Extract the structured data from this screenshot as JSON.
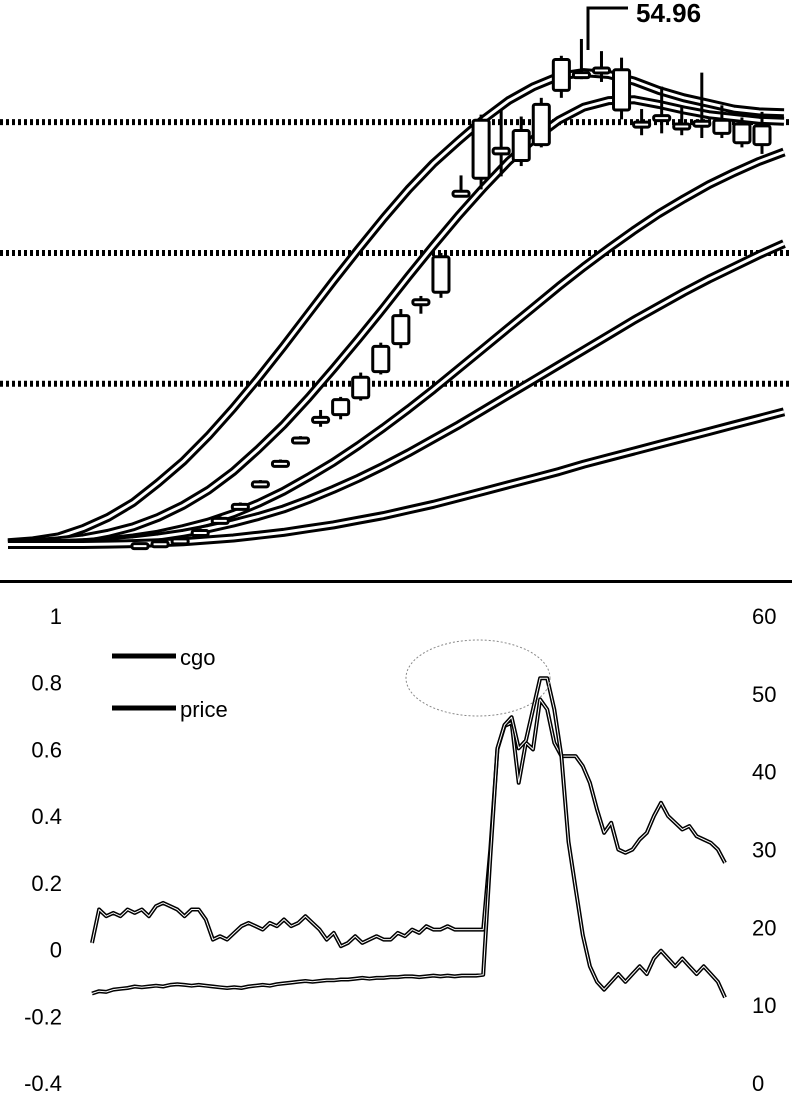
{
  "chart_data": [
    {
      "type": "candlestick",
      "price_tag": "54.96",
      "colors": {
        "line": "#000000",
        "background": "#ffffff"
      },
      "reference_levels": [
        46,
        32,
        18
      ],
      "ylim": [
        0,
        58
      ],
      "candles": [
        {
          "o": 0.9,
          "h": 1.0,
          "l": 0.8,
          "c": 0.9
        },
        {
          "o": 1.1,
          "h": 1.2,
          "l": 1.0,
          "c": 1.1
        },
        {
          "o": 1.4,
          "h": 1.5,
          "l": 1.3,
          "c": 1.4
        },
        {
          "o": 2.3,
          "h": 2.5,
          "l": 2.2,
          "c": 2.3
        },
        {
          "o": 3.6,
          "h": 3.8,
          "l": 3.5,
          "c": 3.6
        },
        {
          "o": 5.1,
          "h": 5.3,
          "l": 4.9,
          "c": 5.1
        },
        {
          "o": 7.5,
          "h": 7.7,
          "l": 7.3,
          "c": 7.5
        },
        {
          "o": 9.7,
          "h": 9.9,
          "l": 9.5,
          "c": 9.7
        },
        {
          "o": 12.2,
          "h": 12.4,
          "l": 12.0,
          "c": 12.2
        },
        {
          "o": 14.2,
          "h": 15.2,
          "l": 13.4,
          "c": 14.4
        },
        {
          "o": 14.7,
          "h": 16.6,
          "l": 14.2,
          "c": 16.3
        },
        {
          "o": 16.5,
          "h": 19.2,
          "l": 16.2,
          "c": 18.7
        },
        {
          "o": 19.3,
          "h": 22.4,
          "l": 19.0,
          "c": 22.0
        },
        {
          "o": 22.3,
          "h": 26.0,
          "l": 21.8,
          "c": 25.3
        },
        {
          "o": 27.0,
          "h": 27.4,
          "l": 25.5,
          "c": 27.0
        },
        {
          "o": 27.8,
          "h": 32.0,
          "l": 27.2,
          "c": 31.6
        },
        {
          "o": 38.6,
          "h": 40.3,
          "l": 38.0,
          "c": 38.6
        },
        {
          "o": 40.0,
          "h": 46.8,
          "l": 38.8,
          "c": 46.2
        },
        {
          "o": 42.6,
          "h": 47.4,
          "l": 40.2,
          "c": 43.2
        },
        {
          "o": 41.9,
          "h": 46.6,
          "l": 41.3,
          "c": 45.1
        },
        {
          "o": 43.6,
          "h": 48.6,
          "l": 43.3,
          "c": 47.9
        },
        {
          "o": 49.4,
          "h": 53.1,
          "l": 48.6,
          "c": 52.7
        },
        {
          "o": 51.3,
          "h": 54.9,
          "l": 50.6,
          "c": 51.3
        },
        {
          "o": 51.3,
          "h": 53.6,
          "l": 50.3,
          "c": 51.8
        },
        {
          "o": 47.3,
          "h": 52.9,
          "l": 46.3,
          "c": 51.6
        },
        {
          "o": 46.0,
          "h": 47.4,
          "l": 44.6,
          "c": 46.0
        },
        {
          "o": 46.7,
          "h": 49.8,
          "l": 44.8,
          "c": 46.7
        },
        {
          "o": 45.8,
          "h": 47.6,
          "l": 44.6,
          "c": 45.8
        },
        {
          "o": 46.1,
          "h": 51.3,
          "l": 44.3,
          "c": 46.1
        },
        {
          "o": 46.2,
          "h": 47.8,
          "l": 44.3,
          "c": 44.8
        },
        {
          "o": 45.8,
          "h": 46.5,
          "l": 43.3,
          "c": 43.8
        },
        {
          "o": 43.6,
          "h": 47.1,
          "l": 42.6,
          "c": 45.6
        }
      ],
      "moving_averages": [
        [
          1.0,
          1.2,
          1.6,
          2.5,
          3.7,
          5.3,
          7.4,
          9.7,
          12.4,
          15.4,
          18.6,
          22.0,
          25.5,
          29.0,
          32.4,
          35.7,
          38.8,
          41.6,
          44.0,
          46.3,
          48.3,
          49.8,
          50.9,
          51.3,
          51.1,
          50.4,
          49.4,
          48.6,
          48.0,
          47.4,
          47.1,
          47.0
        ],
        [
          0.9,
          1.0,
          1.2,
          1.5,
          2.0,
          2.7,
          3.7,
          5.0,
          6.6,
          8.6,
          11.0,
          13.6,
          16.5,
          19.6,
          22.8,
          26.1,
          29.5,
          32.8,
          36.0,
          39.0,
          41.8,
          44.2,
          46.2,
          47.6,
          48.3,
          48.4,
          47.9,
          47.3,
          46.8,
          46.5,
          46.2,
          46.1
        ],
        [
          0.8,
          0.85,
          0.9,
          1.0,
          1.2,
          1.5,
          1.9,
          2.5,
          3.2,
          4.1,
          5.2,
          6.5,
          8.0,
          9.6,
          11.4,
          13.3,
          15.3,
          17.4,
          19.6,
          21.8,
          24.0,
          26.2,
          28.4,
          30.5,
          32.5,
          34.4,
          36.2,
          37.8,
          39.3,
          40.6,
          41.8,
          42.8
        ],
        [
          0.8,
          0.85,
          0.9,
          1.0,
          1.1,
          1.3,
          1.6,
          2.0,
          2.5,
          3.1,
          3.8,
          4.6,
          5.6,
          6.7,
          7.9,
          9.2,
          10.6,
          12.1,
          13.6,
          15.2,
          16.8,
          18.4,
          20.0,
          21.6,
          23.2,
          24.8,
          26.3,
          27.8,
          29.2,
          30.5,
          31.8,
          33.0
        ],
        [
          0.8,
          0.8,
          0.8,
          0.8,
          0.85,
          0.9,
          1.0,
          1.1,
          1.3,
          1.5,
          1.8,
          2.1,
          2.5,
          2.9,
          3.4,
          3.9,
          4.5,
          5.1,
          5.8,
          6.5,
          7.2,
          7.9,
          8.6,
          9.4,
          10.1,
          10.8,
          11.5,
          12.2,
          12.9,
          13.6,
          14.3,
          15.0
        ]
      ]
    },
    {
      "type": "line",
      "left_axis": {
        "ticks": [
          "1",
          "0.8",
          "0.6",
          "0.4",
          "0.2",
          "0",
          "-0.2",
          "-0.4"
        ],
        "ylim": [
          -0.4,
          1
        ]
      },
      "right_axis": {
        "ticks": [
          "60",
          "50",
          "40",
          "30",
          "20",
          "10",
          "0"
        ],
        "ylim": [
          0,
          60
        ]
      },
      "legend": "top-left",
      "series": [
        {
          "name": "cgo",
          "axis": "left",
          "values": [
            0.02,
            0.12,
            0.1,
            0.11,
            0.1,
            0.12,
            0.11,
            0.12,
            0.1,
            0.13,
            0.14,
            0.13,
            0.12,
            0.1,
            0.12,
            0.12,
            0.09,
            0.03,
            0.04,
            0.03,
            0.05,
            0.07,
            0.08,
            0.07,
            0.06,
            0.08,
            0.07,
            0.09,
            0.07,
            0.08,
            0.1,
            0.08,
            0.06,
            0.03,
            0.05,
            0.01,
            0.02,
            0.04,
            0.02,
            0.03,
            0.04,
            0.03,
            0.03,
            0.05,
            0.04,
            0.06,
            0.05,
            0.07,
            0.06,
            0.06,
            0.07,
            0.06,
            0.06,
            0.06,
            0.06,
            0.06,
            0.3,
            0.6,
            0.67,
            0.68,
            0.5,
            0.62,
            0.6,
            0.75,
            0.72,
            0.62,
            0.58,
            0.58,
            0.58,
            0.55,
            0.5,
            0.42,
            0.35,
            0.38,
            0.3,
            0.29,
            0.3,
            0.33,
            0.35,
            0.4,
            0.44,
            0.4,
            0.38,
            0.36,
            0.37,
            0.34,
            0.33,
            0.32,
            0.3,
            0.26
          ],
          "color": "#000000"
        },
        {
          "name": "price",
          "axis": "right",
          "values": [
            11.5,
            11.8,
            11.7,
            12,
            12.1,
            12.2,
            12.4,
            12.3,
            12.4,
            12.5,
            12.4,
            12.6,
            12.7,
            12.6,
            12.5,
            12.6,
            12.5,
            12.4,
            12.3,
            12.2,
            12.3,
            12.2,
            12.4,
            12.5,
            12.6,
            12.5,
            12.7,
            12.8,
            12.9,
            13,
            13.1,
            13,
            13.1,
            13.2,
            13.2,
            13.3,
            13.3,
            13.4,
            13.5,
            13.4,
            13.5,
            13.5,
            13.6,
            13.6,
            13.7,
            13.7,
            13.6,
            13.7,
            13.8,
            13.7,
            13.8,
            13.7,
            13.8,
            13.8,
            13.8,
            13.9,
            29,
            43,
            46,
            47,
            43,
            44,
            48,
            52,
            52,
            48,
            42,
            31,
            25,
            19,
            15,
            13,
            12,
            13,
            14,
            13,
            14,
            15,
            14,
            16,
            17,
            16,
            15,
            16,
            15,
            14,
            15,
            14,
            13,
            11
          ],
          "color": "#000000"
        }
      ]
    }
  ]
}
